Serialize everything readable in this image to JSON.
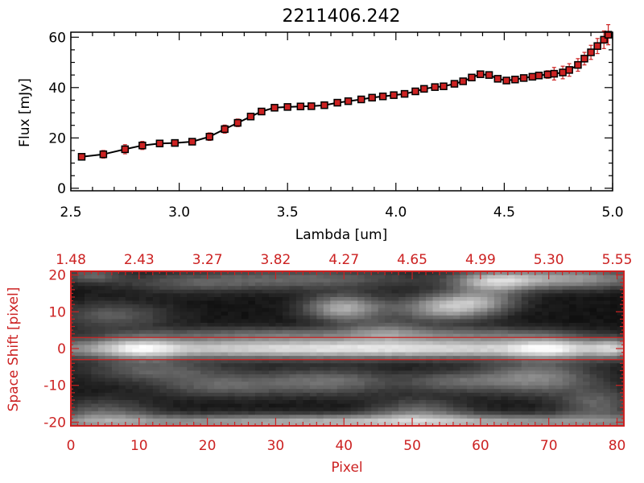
{
  "colors": {
    "axis_black": "#000000",
    "axis_red": "#cc2222",
    "marker": "#cc2222",
    "line": "#000000"
  },
  "chart_data": [
    {
      "type": "line",
      "title": "2211406.242",
      "xlabel": "Lambda [um]",
      "ylabel": "Flux [mJy]",
      "xlim": [
        2.5,
        5.0
      ],
      "ylim": [
        -1,
        62
      ],
      "xticks": [
        "2.5",
        "3.0",
        "3.5",
        "4.0",
        "4.5",
        "5.0"
      ],
      "yticks": [
        "0",
        "20",
        "40",
        "60"
      ],
      "grid": false,
      "series": [
        {
          "x": [
            2.55,
            2.65,
            2.75,
            2.83,
            2.91,
            2.98,
            3.06,
            3.14,
            3.21,
            3.27,
            3.33,
            3.38,
            3.44,
            3.5,
            3.56,
            3.61,
            3.67,
            3.73,
            3.78,
            3.84,
            3.89,
            3.94,
            3.99,
            4.04,
            4.09,
            4.13,
            4.18,
            4.22,
            4.27,
            4.31,
            4.35,
            4.39,
            4.43,
            4.47,
            4.51,
            4.55,
            4.59,
            4.63,
            4.66,
            4.7,
            4.73,
            4.77,
            4.8,
            4.84,
            4.87,
            4.9,
            4.93,
            4.96,
            4.98
          ],
          "y": [
            12.5,
            13.5,
            15.5,
            17.0,
            17.8,
            18.0,
            18.5,
            20.5,
            23.5,
            26.0,
            28.5,
            30.5,
            32.0,
            32.3,
            32.5,
            32.6,
            33.0,
            34.0,
            34.6,
            35.3,
            36.0,
            36.5,
            37.0,
            37.5,
            38.5,
            39.5,
            40.2,
            40.5,
            41.5,
            42.5,
            44.0,
            45.3,
            45.0,
            43.5,
            42.8,
            43.2,
            43.8,
            44.3,
            44.8,
            45.2,
            45.5,
            46.0,
            47.0,
            49.0,
            51.5,
            54.0,
            56.5,
            59.0,
            61.0
          ],
          "yerr": [
            1.2,
            1.5,
            1.8,
            1.6,
            1.2,
            1.0,
            1.0,
            1.5,
            1.6,
            1.5,
            1.2,
            1.0,
            0.8,
            0.8,
            0.8,
            0.8,
            0.8,
            0.8,
            0.8,
            0.8,
            0.8,
            0.8,
            0.8,
            0.8,
            0.8,
            0.8,
            0.8,
            0.8,
            0.8,
            0.8,
            0.8,
            0.9,
            0.9,
            0.9,
            0.9,
            1.0,
            1.0,
            1.2,
            1.2,
            1.5,
            2.5,
            2.5,
            2.5,
            2.5,
            2.5,
            2.8,
            3.0,
            3.5,
            4.0
          ]
        }
      ]
    },
    {
      "type": "heatmap",
      "xlabel": "Pixel",
      "ylabel": "Space Shift [pixel]",
      "xlim": [
        0,
        81
      ],
      "ylim": [
        -21,
        21
      ],
      "xticks": [
        "0",
        "10",
        "20",
        "30",
        "40",
        "50",
        "60",
        "70",
        "80"
      ],
      "yticks": [
        "-20",
        "-10",
        "0",
        "10",
        "20"
      ],
      "top_axis_ticks": [
        "1.48",
        "2.43",
        "3.27",
        "3.82",
        "4.27",
        "4.65",
        "4.99",
        "5.30",
        "5.55"
      ],
      "marker_lines_y": [
        -3,
        3
      ],
      "blobs": [
        {
          "x": 42,
          "y": 0,
          "sx": 38,
          "sy": 1.9,
          "v": 0.82
        },
        {
          "x": 10,
          "y": 0,
          "sx": 4,
          "sy": 2.3,
          "v": 0.35
        },
        {
          "x": 70,
          "y": 0,
          "sx": 4,
          "sy": 2.3,
          "v": 0.3
        },
        {
          "x": 79,
          "y": 0,
          "sx": 2,
          "sy": 2,
          "v": 0.25
        },
        {
          "x": 44,
          "y": -20,
          "sx": 36,
          "sy": 1.5,
          "v": 0.65
        },
        {
          "x": 51,
          "y": -17,
          "sx": 5,
          "sy": 2.5,
          "v": 0.3
        },
        {
          "x": 22,
          "y": -10,
          "sx": 7,
          "sy": 2.3,
          "v": 0.3
        },
        {
          "x": 38,
          "y": -9,
          "sx": 7,
          "sy": 2.5,
          "v": 0.35
        },
        {
          "x": 68,
          "y": -8,
          "sx": 6,
          "sy": 3,
          "v": 0.45
        },
        {
          "x": 56,
          "y": -9,
          "sx": 5,
          "sy": 2,
          "v": 0.28
        },
        {
          "x": 12,
          "y": -6,
          "sx": 7,
          "sy": 2,
          "v": 0.28
        },
        {
          "x": 40,
          "y": 11,
          "sx": 4,
          "sy": 2.5,
          "v": 0.6
        },
        {
          "x": 55,
          "y": 11,
          "sx": 5,
          "sy": 2.5,
          "v": 0.58
        },
        {
          "x": 60,
          "y": 13,
          "sx": 4,
          "sy": 2,
          "v": 0.35
        },
        {
          "x": 62,
          "y": 18,
          "sx": 4,
          "sy": 2,
          "v": 0.5
        },
        {
          "x": 72,
          "y": 19,
          "sx": 9,
          "sy": 2,
          "v": 0.55
        },
        {
          "x": 3,
          "y": 20,
          "sx": 3,
          "sy": 1.5,
          "v": 0.3
        },
        {
          "x": 6,
          "y": 9,
          "sx": 6,
          "sy": 2.5,
          "v": 0.28
        },
        {
          "x": 36,
          "y": 19,
          "sx": 10,
          "sy": 2,
          "v": 0.3
        },
        {
          "x": 18,
          "y": 18,
          "sx": 8,
          "sy": 2,
          "v": 0.25
        },
        {
          "x": 30,
          "y": 4,
          "sx": 15,
          "sy": 1.4,
          "v": 0.28
        },
        {
          "x": 60,
          "y": 4,
          "sx": 10,
          "sy": 1.4,
          "v": 0.25
        },
        {
          "x": 5,
          "y": -18,
          "sx": 5,
          "sy": 3,
          "v": 0.3
        },
        {
          "x": 77,
          "y": -15,
          "sx": 4,
          "sy": 3,
          "v": 0.3
        },
        {
          "x": 46,
          "y": 5,
          "sx": 4,
          "sy": 2,
          "v": 0.25
        }
      ]
    }
  ]
}
